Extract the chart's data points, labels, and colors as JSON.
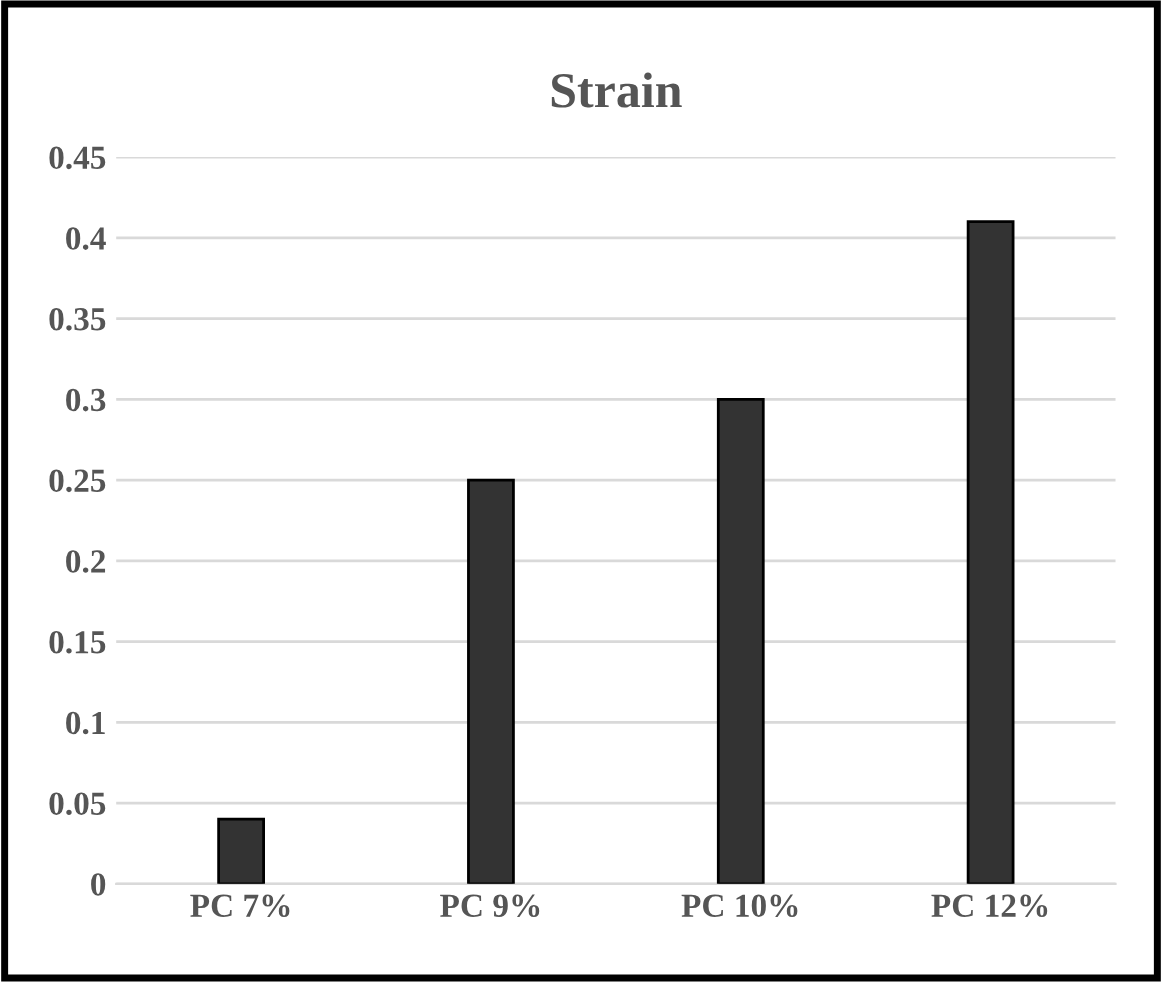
{
  "chart_data": {
    "type": "bar",
    "title": "Strain",
    "categories": [
      "PC 7%",
      "PC 9%",
      "PC 10%",
      "PC 12%"
    ],
    "values": [
      0.04,
      0.25,
      0.3,
      0.41
    ],
    "color": "#333333",
    "ylim": [
      0,
      0.45
    ],
    "yticks": [
      0,
      0.05,
      0.1,
      0.15,
      0.2,
      0.25,
      0.3,
      0.35,
      0.4,
      0.45
    ],
    "grid": "y"
  }
}
